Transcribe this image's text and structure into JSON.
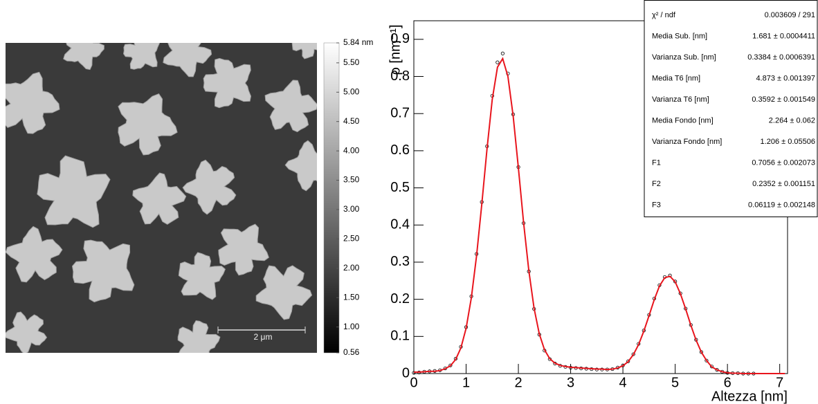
{
  "image": {
    "scale_bar_label": "2 μm",
    "colorbar": {
      "ylim": [
        0.56,
        5.84
      ],
      "yticks": [
        {
          "value": 5.84,
          "label": "5.84 nm"
        },
        {
          "value": 5.5,
          "label": "5.50"
        },
        {
          "value": 5,
          "label": "5.00"
        },
        {
          "value": 4.5,
          "label": "4.50"
        },
        {
          "value": 4,
          "label": "4.00"
        },
        {
          "value": 3.5,
          "label": "3.50"
        },
        {
          "value": 3,
          "label": "3.00"
        },
        {
          "value": 2.5,
          "label": "2.50"
        },
        {
          "value": 2,
          "label": "2.00"
        },
        {
          "value": 1.5,
          "label": "1.50"
        },
        {
          "value": 1,
          "label": "1.00"
        },
        0.56
      ]
    }
  },
  "chart_data": {
    "type": "line",
    "x_label": "Altezza [nm]",
    "y_label": "ρ [nm⁻¹]",
    "xlim": [
      0,
      7.15
    ],
    "ylim": [
      0,
      0.95
    ],
    "xticks": [
      0,
      1,
      2,
      3,
      4,
      5,
      6,
      7
    ],
    "yticks": [
      0,
      0.1,
      0.2,
      0.3,
      0.4,
      0.5,
      0.6,
      0.7,
      0.8,
      0.9
    ],
    "series": [
      {
        "type": "scatter",
        "color": "#000000",
        "x": [
          0,
          0.1,
          0.2,
          0.3,
          0.4,
          0.5,
          0.6,
          0.7,
          0.8,
          0.9,
          1,
          1.1,
          1.2,
          1.3,
          1.4,
          1.5,
          1.6,
          1.7,
          1.8,
          1.9,
          2,
          2.1,
          2.2,
          2.3,
          2.4,
          2.5,
          2.6,
          2.7,
          2.8,
          2.9,
          3,
          3.1,
          3.2,
          3.3,
          3.4,
          3.5,
          3.6,
          3.7,
          3.8,
          3.9,
          4,
          4.1,
          4.2,
          4.3,
          4.4,
          4.5,
          4.6,
          4.7,
          4.8,
          4.9,
          5,
          5.1,
          5.2,
          5.3,
          5.4,
          5.5,
          5.6,
          5.7,
          5.8,
          5.9,
          6,
          6.1,
          6.2,
          6.3,
          6.4,
          6.5
        ],
        "values": [
          0.002,
          0.003,
          0.005,
          0.006,
          0.007,
          0.009,
          0.014,
          0.022,
          0.04,
          0.072,
          0.125,
          0.208,
          0.322,
          0.462,
          0.612,
          0.748,
          0.838,
          0.862,
          0.808,
          0.698,
          0.556,
          0.405,
          0.275,
          0.174,
          0.105,
          0.062,
          0.039,
          0.027,
          0.021,
          0.018,
          0.016,
          0.015,
          0.014,
          0.013,
          0.012,
          0.011,
          0.011,
          0.011,
          0.012,
          0.016,
          0.022,
          0.033,
          0.052,
          0.08,
          0.116,
          0.158,
          0.202,
          0.238,
          0.26,
          0.264,
          0.248,
          0.216,
          0.175,
          0.131,
          0.091,
          0.058,
          0.035,
          0.019,
          0.01,
          0.005,
          0.002,
          0.001,
          0.001,
          0,
          0,
          0
        ]
      },
      {
        "type": "line",
        "color": "#e8141c",
        "x": [
          0,
          0.1,
          0.2,
          0.3,
          0.4,
          0.5,
          0.6,
          0.7,
          0.8,
          0.9,
          1,
          1.1,
          1.2,
          1.3,
          1.4,
          1.5,
          1.6,
          1.7,
          1.8,
          1.9,
          2,
          2.1,
          2.2,
          2.3,
          2.4,
          2.5,
          2.6,
          2.7,
          2.8,
          2.9,
          3,
          3.1,
          3.2,
          3.3,
          3.4,
          3.5,
          3.6,
          3.7,
          3.8,
          3.9,
          4,
          4.1,
          4.2,
          4.3,
          4.4,
          4.5,
          4.6,
          4.7,
          4.8,
          4.9,
          5,
          5.1,
          5.2,
          5.3,
          5.4,
          5.5,
          5.6,
          5.7,
          5.8,
          5.9,
          6,
          6.1,
          6.2,
          6.3,
          6.4,
          6.5,
          6.6,
          6.7,
          6.8,
          6.9,
          7,
          7.1
        ],
        "values": [
          0.004,
          0.004,
          0.005,
          0.006,
          0.006,
          0.008,
          0.013,
          0.021,
          0.038,
          0.069,
          0.122,
          0.204,
          0.317,
          0.456,
          0.605,
          0.738,
          0.825,
          0.848,
          0.8,
          0.694,
          0.554,
          0.406,
          0.277,
          0.176,
          0.107,
          0.064,
          0.04,
          0.028,
          0.022,
          0.019,
          0.017,
          0.016,
          0.015,
          0.014,
          0.013,
          0.012,
          0.012,
          0.011,
          0.012,
          0.015,
          0.021,
          0.032,
          0.051,
          0.078,
          0.114,
          0.156,
          0.199,
          0.236,
          0.258,
          0.262,
          0.247,
          0.215,
          0.174,
          0.13,
          0.09,
          0.058,
          0.035,
          0.018,
          0.01,
          0.005,
          0.002,
          0.001,
          0.001,
          0,
          0,
          0,
          0,
          0,
          0,
          0,
          0,
          0
        ]
      }
    ],
    "stats": [
      {
        "label": "χ² / ndf",
        "value": "0.003609 / 291"
      },
      {
        "label": "Media Sub. [nm]",
        "value": "1.681 ± 0.0004411"
      },
      {
        "label": "Varianza Sub. [nm]",
        "value": "0.3384 ± 0.0006391"
      },
      {
        "label": "Media T6 [nm]",
        "value": "4.873 ± 0.001397"
      },
      {
        "label": "Varianza T6 [nm]",
        "value": "0.3592 ± 0.001549"
      },
      {
        "label": "Media Fondo [nm]",
        "value": "2.264 ± 0.062"
      },
      {
        "label": "Varianza Fondo [nm]",
        "value": "1.206 ± 0.05506"
      },
      {
        "label": "F1",
        "value": "0.7056 ± 0.002073"
      },
      {
        "label": "F2",
        "value": "0.2352 ± 0.001151"
      },
      {
        "label": "F3",
        "value": "0.06119 ± 0.002148"
      }
    ]
  }
}
